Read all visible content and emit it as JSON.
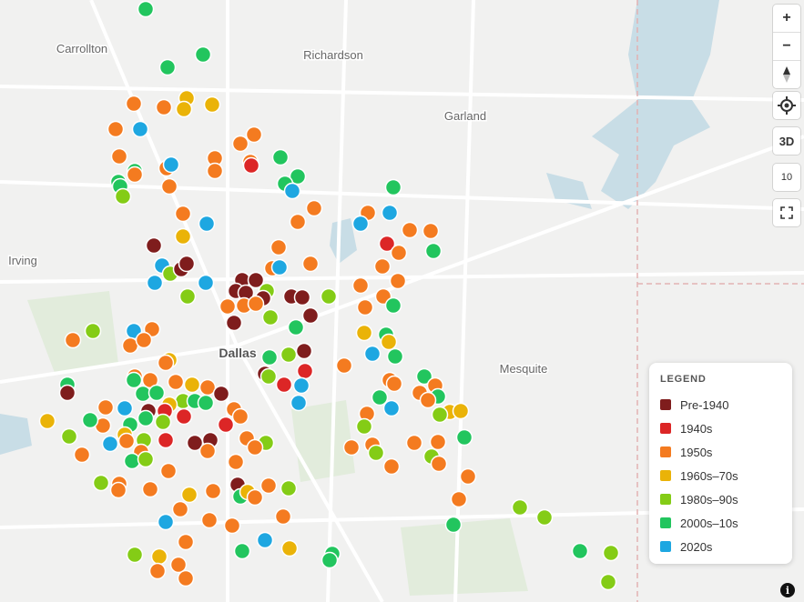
{
  "map": {
    "place_labels": [
      "Carrollton",
      "Richardson",
      "Garland",
      "Irving",
      "Dallas",
      "Mesquite"
    ]
  },
  "controls": {
    "zoom_in": "+",
    "zoom_out": "−",
    "tilt": "3D",
    "zoom_level": "10"
  },
  "legend": {
    "title": "LEGEND",
    "items": [
      {
        "label": "Pre-1940",
        "color": "#7f1d1d"
      },
      {
        "label": "1940s",
        "color": "#dc2626"
      },
      {
        "label": "1950s",
        "color": "#f47b20"
      },
      {
        "label": "1960s–70s",
        "color": "#eab308"
      },
      {
        "label": "1980s–90s",
        "color": "#84cc16"
      },
      {
        "label": "2000s–10s",
        "color": "#22c55e"
      },
      {
        "label": "2020s",
        "color": "#1ea7e1"
      }
    ]
  }
}
